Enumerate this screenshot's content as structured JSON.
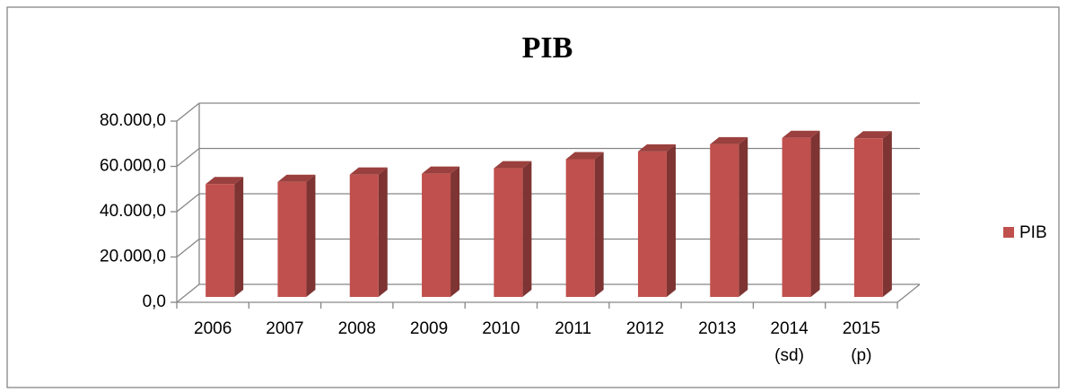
{
  "chart_data": {
    "type": "bar3d",
    "title": "PIB",
    "categories": [
      "2006",
      "2007",
      "2008",
      "2009",
      "2010",
      "2011",
      "2012",
      "2013",
      "2014 (sd)",
      "2015 (p)"
    ],
    "series": [
      {
        "name": "PIB",
        "color": "#c0504d",
        "values": [
          49800,
          50800,
          54000,
          54400,
          56800,
          60800,
          64200,
          67400,
          70200,
          70000
        ]
      }
    ],
    "ylim": [
      0,
      80000
    ],
    "yticks": [
      {
        "value": 0,
        "label": "0,0"
      },
      {
        "value": 20000,
        "label": "20.000,0"
      },
      {
        "value": 40000,
        "label": "40.000,0"
      },
      {
        "value": 60000,
        "label": "60.000,0"
      },
      {
        "value": 80000,
        "label": "80.000,0"
      }
    ],
    "grid": true,
    "legend": "right"
  }
}
